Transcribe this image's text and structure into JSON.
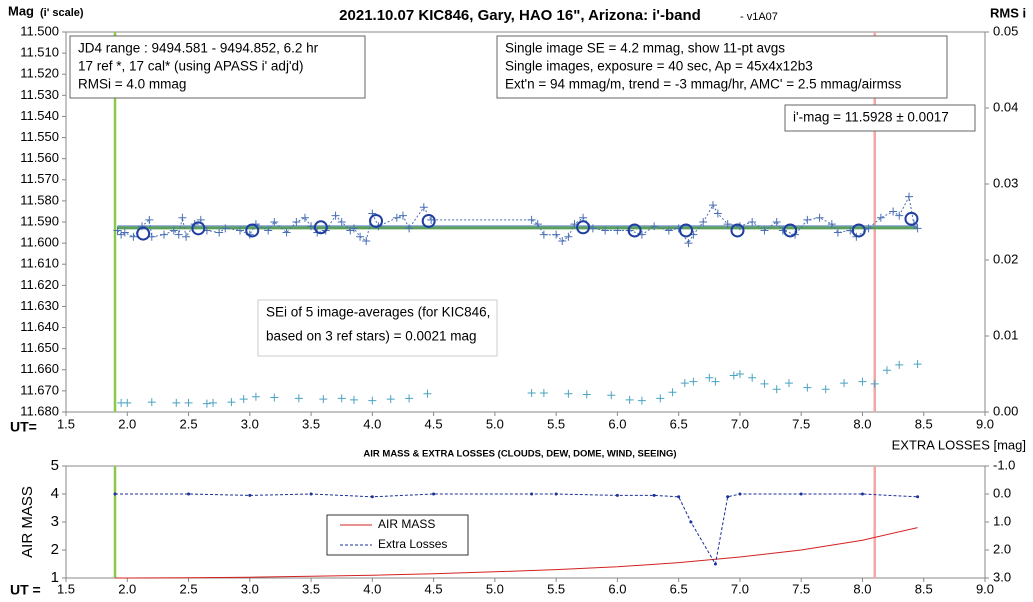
{
  "chart_data": [
    {
      "type": "scatter",
      "title": "2021.10.07 KIC846, Gary, HAO 16\", Arizona: i'-band",
      "version": "- v1A07",
      "ylabel": "Mag",
      "ylabel_note": "(i' scale)",
      "y2label": "RMS i",
      "xlabel": "UT=",
      "xlim": [
        1.5,
        9.0
      ],
      "xticks": [
        1.5,
        {
          "value": 2.0,
          "label": "2.0"
        },
        2.5,
        {
          "value": 3.0,
          "label": "3.0"
        },
        3.5,
        {
          "value": 4.0,
          "label": "4.0"
        },
        4.5,
        {
          "value": 5.0,
          "label": "5.0"
        },
        5.5,
        {
          "value": 6.0,
          "label": "6.0"
        },
        6.5,
        {
          "value": 7.0,
          "label": "7.0"
        },
        7.5,
        {
          "value": 8.0,
          "label": "8.0"
        },
        8.5,
        {
          "value": 9.0,
          "label": "9.0"
        }
      ],
      "ylim": [
        11.68,
        11.5
      ],
      "yticks": [
        {
          "value": 11.5,
          "label": "11.500"
        },
        {
          "value": 11.51,
          "label": "11.510"
        },
        {
          "value": 11.52,
          "label": "11.520"
        },
        {
          "value": 11.53,
          "label": "11.530"
        },
        {
          "value": 11.54,
          "label": "11.540"
        },
        {
          "value": 11.55,
          "label": "11.550"
        },
        {
          "value": 11.56,
          "label": "11.560"
        },
        {
          "value": 11.57,
          "label": "11.570"
        },
        {
          "value": 11.58,
          "label": "11.580"
        },
        {
          "value": 11.59,
          "label": "11.590"
        },
        {
          "value": 11.6,
          "label": "11.600"
        },
        {
          "value": 11.61,
          "label": "11.610"
        },
        {
          "value": 11.62,
          "label": "11.620"
        },
        {
          "value": 11.63,
          "label": "11.630"
        },
        {
          "value": 11.64,
          "label": "11.640"
        },
        {
          "value": 11.65,
          "label": "11.650"
        },
        {
          "value": 11.66,
          "label": "11.660"
        },
        {
          "value": 11.67,
          "label": "11.670"
        },
        {
          "value": 11.68,
          "label": "11.680"
        }
      ],
      "y2lim": [
        0,
        0.05
      ],
      "y2ticks": [
        {
          "value": 0,
          "label": "0.00"
        },
        0.01,
        0.02,
        0.03,
        0.04,
        0.05
      ],
      "hlines": [
        {
          "value": 11.5928,
          "color": "#5aa05a"
        }
      ],
      "vlines": [
        {
          "value": 1.9,
          "color": "#8cc84b"
        },
        {
          "value": 8.1,
          "color": "#f4a6a6"
        }
      ],
      "series": [
        {
          "color": "#4a6fb5",
          "marker": "cross",
          "line": "dotted",
          "x": [
            1.92,
            1.95,
            1.98,
            2.05,
            2.12,
            2.18,
            2.2,
            2.3,
            2.38,
            2.42,
            2.45,
            2.48,
            2.55,
            2.6,
            2.65,
            2.75,
            2.8,
            2.92,
            3.0,
            3.05,
            3.15,
            3.2,
            3.3,
            3.38,
            3.45,
            3.5,
            3.55,
            3.62,
            3.7,
            3.75,
            3.82,
            3.85,
            3.9,
            3.95,
            4.0,
            4.05,
            4.2,
            4.25,
            4.3,
            4.42,
            4.48,
            5.3,
            5.35,
            5.4,
            5.5,
            5.55,
            5.6,
            5.65,
            5.72,
            5.8,
            5.9,
            6.0,
            6.1,
            6.2,
            6.3,
            6.42,
            6.5,
            6.58,
            6.62,
            6.7,
            6.78,
            6.82,
            6.9,
            7.0,
            7.1,
            7.2,
            7.3,
            7.35,
            7.45,
            7.55,
            7.65,
            7.75,
            7.8,
            7.9,
            7.95,
            8.05,
            8.15,
            8.25,
            8.3,
            8.38,
            8.42,
            8.45
          ],
          "values": [
            11.594,
            11.596,
            11.595,
            11.597,
            11.592,
            11.589,
            11.597,
            11.596,
            11.594,
            11.596,
            11.588,
            11.597,
            11.591,
            11.589,
            11.594,
            11.595,
            11.593,
            11.594,
            11.596,
            11.591,
            11.594,
            11.59,
            11.595,
            11.59,
            11.588,
            11.592,
            11.595,
            11.594,
            11.587,
            11.59,
            11.594,
            11.593,
            11.597,
            11.599,
            11.586,
            11.592,
            11.588,
            11.587,
            11.593,
            11.583,
            11.589,
            11.589,
            11.591,
            11.596,
            11.596,
            11.599,
            11.597,
            11.591,
            11.588,
            11.593,
            11.594,
            11.594,
            11.594,
            11.596,
            11.592,
            11.594,
            11.593,
            11.6,
            11.596,
            11.59,
            11.582,
            11.586,
            11.591,
            11.592,
            11.59,
            11.594,
            11.59,
            11.594,
            11.596,
            11.589,
            11.588,
            11.591,
            11.595,
            11.594,
            11.597,
            11.593,
            11.588,
            11.585,
            11.587,
            11.578,
            11.591,
            11.593
          ]
        },
        {
          "color": "#1f3fa0",
          "marker": "circle",
          "x": [
            2.13,
            2.58,
            3.02,
            3.58,
            4.03,
            4.46,
            5.72,
            6.14,
            6.56,
            6.98,
            7.41,
            7.97,
            8.4
          ],
          "values": [
            11.5955,
            11.593,
            11.594,
            11.5925,
            11.5895,
            11.5895,
            11.5925,
            11.594,
            11.594,
            11.594,
            11.594,
            11.594,
            11.5885
          ]
        },
        {
          "color": "#4aa3c2",
          "marker": "cross",
          "axis": "y2",
          "x": [
            1.95,
            2.0,
            2.2,
            2.4,
            2.5,
            2.65,
            2.7,
            2.85,
            2.95,
            3.05,
            3.2,
            3.4,
            3.6,
            3.75,
            3.85,
            4.0,
            4.15,
            4.3,
            4.45,
            5.3,
            5.4,
            5.6,
            5.75,
            5.95,
            6.1,
            6.2,
            6.35,
            6.45,
            6.55,
            6.62,
            6.75,
            6.8,
            6.95,
            7.0,
            7.1,
            7.2,
            7.3,
            7.4,
            7.55,
            7.7,
            7.85,
            8.0,
            8.1,
            8.2,
            8.3,
            8.45
          ],
          "values": [
            0.0012,
            0.0012,
            0.0013,
            0.0012,
            0.0012,
            0.0011,
            0.0012,
            0.0013,
            0.0017,
            0.002,
            0.0019,
            0.0018,
            0.0017,
            0.0018,
            0.0016,
            0.0015,
            0.0017,
            0.0018,
            0.0024,
            0.0025,
            0.0025,
            0.0024,
            0.0023,
            0.0022,
            0.0016,
            0.0015,
            0.0018,
            0.0026,
            0.0038,
            0.004,
            0.0045,
            0.004,
            0.0048,
            0.005,
            0.0045,
            0.0037,
            0.003,
            0.0038,
            0.0032,
            0.003,
            0.0038,
            0.004,
            0.0037,
            0.0055,
            0.0062,
            0.0063
          ]
        }
      ],
      "annotations": [
        {
          "lines": [
            "JD4 range : 9494.581 - 9494.852, 6.2  hr",
            "17 ref *, 17 cal* (using APASS i' adj'd)",
            "RMSi = 4.0 mmag"
          ]
        },
        {
          "lines": [
            "Single image SE = 4.2 mmag, show 11-pt avgs",
            "Single images, exposure = 40 sec, Ap = 45x4x12b3",
            "Ext'n = 94 mmag/m, trend = -3 mmag/hr, AMC' = 2.5 mmag/airmss"
          ]
        },
        {
          "lines": [
            "i'-mag = 11.5928 ± 0.0017"
          ]
        },
        {
          "lines": [
            "SEi of 5 image-averages (for KIC846,",
            "based on 3 ref stars) = 0.0021 mag"
          ]
        }
      ]
    },
    {
      "type": "line",
      "title": "AIR MASS & EXTRA LOSSES (CLOUDS, DEW, DOME, WIND, SEEING)",
      "ylabel": "AIR MASS",
      "y2label": "EXTRA LOSSES [mag]",
      "xlabel": "UT =",
      "xlim": [
        1.5,
        9.0
      ],
      "xticks": [
        1.5,
        {
          "value": 2.0,
          "label": "2.0"
        },
        2.5,
        {
          "value": 3.0,
          "label": "3.0"
        },
        3.5,
        {
          "value": 4.0,
          "label": "4.0"
        },
        4.5,
        {
          "value": 5.0,
          "label": "5.0"
        },
        5.5,
        {
          "value": 6.0,
          "label": "6.0"
        },
        6.5,
        {
          "value": 7.0,
          "label": "7.0"
        },
        7.5,
        {
          "value": 8.0,
          "label": "8.0"
        },
        8.5,
        {
          "value": 9.0,
          "label": "9.0"
        }
      ],
      "ylim": [
        1,
        5
      ],
      "yticks": [
        1,
        2,
        3,
        4,
        5
      ],
      "y2lim": [
        3.0,
        -1.0
      ],
      "y2ticks": [
        {
          "value": -1.0,
          "label": "-1.0"
        },
        {
          "value": 0.0,
          "label": "0.0"
        },
        {
          "value": 1.0,
          "label": "1.0"
        },
        {
          "value": 2.0,
          "label": "2.0"
        },
        {
          "value": 3.0,
          "label": "3.0"
        }
      ],
      "vlines": [
        {
          "value": 1.9,
          "color": "#8cc84b"
        },
        {
          "value": 8.1,
          "color": "#f4a6a6"
        }
      ],
      "series": [
        {
          "name": "AIR MASS",
          "color": "#d42020",
          "line": "solid",
          "x": [
            1.9,
            2.5,
            3.0,
            3.5,
            4.0,
            4.5,
            5.0,
            5.5,
            6.0,
            6.5,
            7.0,
            7.5,
            8.0,
            8.45
          ],
          "values": [
            1.0,
            1.01,
            1.03,
            1.06,
            1.1,
            1.15,
            1.22,
            1.3,
            1.4,
            1.55,
            1.75,
            2.0,
            2.35,
            2.8
          ]
        },
        {
          "name": "Extra Losses",
          "color": "#1a2f9a",
          "line": "dashed",
          "axis": "y2",
          "x": [
            1.9,
            2.5,
            3.0,
            3.5,
            4.0,
            4.5,
            5.3,
            5.5,
            6.0,
            6.3,
            6.5,
            6.6,
            6.8,
            6.9,
            7.0,
            7.5,
            8.0,
            8.45
          ],
          "values": [
            0.0,
            0.0,
            0.05,
            0.0,
            0.1,
            0.0,
            0.0,
            0.0,
            0.05,
            0.05,
            0.1,
            1.0,
            2.5,
            0.1,
            0.0,
            0.0,
            0.0,
            0.1
          ]
        }
      ]
    }
  ]
}
